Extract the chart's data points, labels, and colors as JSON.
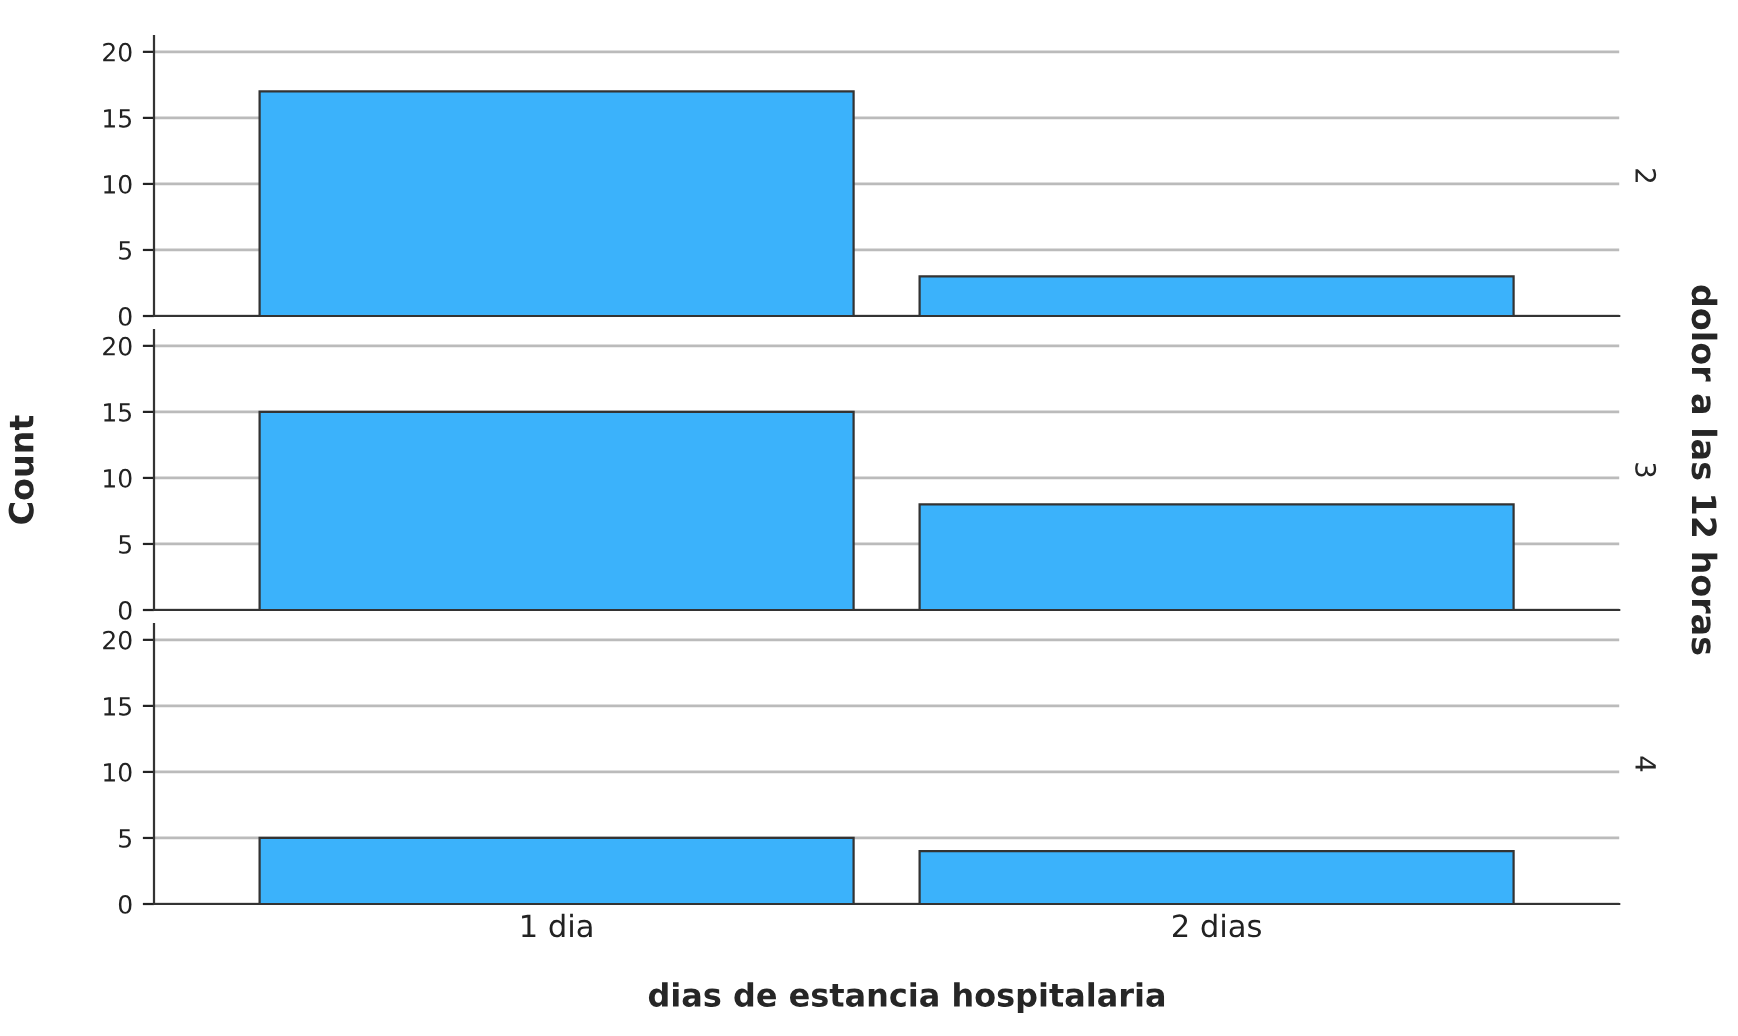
{
  "chart_data": [
    {
      "type": "bar",
      "annotations": [
        "2"
      ],
      "categories": [
        null,
        null
      ],
      "values": [
        17,
        3
      ],
      "color": "#3bb2fb",
      "ylim": [
        0,
        21.2
      ],
      "yticks": [
        0,
        5,
        10,
        15,
        20
      ],
      "grid": "y",
      "legend": false,
      "tick_labels": "y"
    },
    {
      "type": "bar",
      "ylabel": "Count",
      "annotations": [
        "3",
        "dolor a las 12 horas"
      ],
      "categories": [
        null,
        null
      ],
      "values": [
        15,
        8
      ],
      "color": "#3bb2fb",
      "ylim": [
        0,
        21.2
      ],
      "yticks": [
        0,
        5,
        10,
        15,
        20
      ],
      "grid": "y",
      "legend": false,
      "tick_labels": "y"
    },
    {
      "type": "bar",
      "annotations": [
        "4"
      ],
      "xlabel": "dias de estancia hospitalaria",
      "categories": [
        "1 dia",
        "2 dias"
      ],
      "values": [
        5,
        4
      ],
      "color": "#3bb2fb",
      "ylim": [
        0,
        21.2
      ],
      "yticks": [
        0,
        5,
        10,
        15,
        20
      ],
      "grid": "y",
      "legend": false
    }
  ]
}
